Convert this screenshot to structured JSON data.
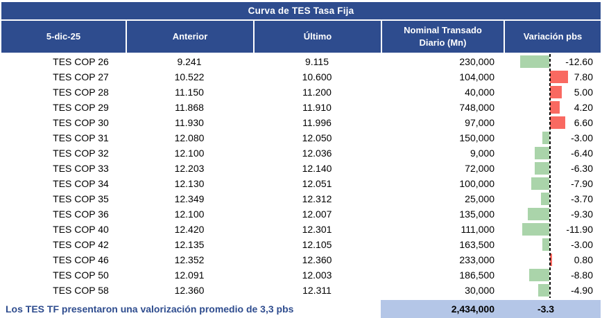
{
  "title": "Curva de TES Tasa Fija",
  "header": {
    "date": "5-dic-25",
    "anterior": "Anterior",
    "ultimo": "Último",
    "nominal_line1": "Nominal Transado",
    "nominal_line2": "Diario (Mn)",
    "variacion": "Variación pbs"
  },
  "table": {
    "rows": [
      {
        "label": "TES COP 26",
        "anterior": "9.241",
        "ultimo": "9.115",
        "nominal": "230,000",
        "variacion": -12.6,
        "variacion_display": "-12.60"
      },
      {
        "label": "TES COP 27",
        "anterior": "10.522",
        "ultimo": "10.600",
        "nominal": "104,000",
        "variacion": 7.8,
        "variacion_display": "7.80"
      },
      {
        "label": "TES COP 28",
        "anterior": "11.150",
        "ultimo": "11.200",
        "nominal": "40,000",
        "variacion": 5.0,
        "variacion_display": "5.00"
      },
      {
        "label": "TES COP 29",
        "anterior": "11.868",
        "ultimo": "11.910",
        "nominal": "748,000",
        "variacion": 4.2,
        "variacion_display": "4.20"
      },
      {
        "label": "TES COP 30",
        "anterior": "11.930",
        "ultimo": "11.996",
        "nominal": "97,000",
        "variacion": 6.6,
        "variacion_display": "6.60"
      },
      {
        "label": "TES COP 31",
        "anterior": "12.080",
        "ultimo": "12.050",
        "nominal": "150,000",
        "variacion": -3.0,
        "variacion_display": "-3.00"
      },
      {
        "label": "TES COP 32",
        "anterior": "12.100",
        "ultimo": "12.036",
        "nominal": "9,000",
        "variacion": -6.4,
        "variacion_display": "-6.40"
      },
      {
        "label": "TES COP 33",
        "anterior": "12.203",
        "ultimo": "12.140",
        "nominal": "72,000",
        "variacion": -6.3,
        "variacion_display": "-6.30"
      },
      {
        "label": "TES COP 34",
        "anterior": "12.130",
        "ultimo": "12.051",
        "nominal": "100,000",
        "variacion": -7.9,
        "variacion_display": "-7.90"
      },
      {
        "label": "TES COP 35",
        "anterior": "12.349",
        "ultimo": "12.312",
        "nominal": "25,000",
        "variacion": -3.7,
        "variacion_display": "-3.70"
      },
      {
        "label": "TES COP 36",
        "anterior": "12.100",
        "ultimo": "12.007",
        "nominal": "135,000",
        "variacion": -9.3,
        "variacion_display": "-9.30"
      },
      {
        "label": "TES COP 40",
        "anterior": "12.420",
        "ultimo": "12.301",
        "nominal": "111,000",
        "variacion": -11.9,
        "variacion_display": "-11.90"
      },
      {
        "label": "TES COP 42",
        "anterior": "12.135",
        "ultimo": "12.105",
        "nominal": "163,500",
        "variacion": -3.0,
        "variacion_display": "-3.00"
      },
      {
        "label": "TES COP 46",
        "anterior": "12.352",
        "ultimo": "12.360",
        "nominal": "233,000",
        "variacion": 0.8,
        "variacion_display": "0.80"
      },
      {
        "label": "TES COP 50",
        "anterior": "12.091",
        "ultimo": "12.003",
        "nominal": "186,500",
        "variacion": -8.8,
        "variacion_display": "-8.80"
      },
      {
        "label": "TES COP 58",
        "anterior": "12.360",
        "ultimo": "12.311",
        "nominal": "30,000",
        "variacion": -4.9,
        "variacion_display": "-4.90"
      }
    ]
  },
  "footer": {
    "note": "Los TES TF presentaron una valorización promedio de 3,3 pbs",
    "total_nominal": "2,434,000",
    "avg_variacion": "-3.3"
  },
  "colors": {
    "header_bg": "#2E4C8E",
    "header_text": "#FFFFFF",
    "positive_bar": "#F96961",
    "negative_bar": "#AAD4AA",
    "total_bg": "#B4C6E7",
    "note_text": "#2E4C8E",
    "zero_line": "#000000"
  },
  "chart_data": {
    "type": "table",
    "title": "Curva de TES Tasa Fija",
    "date": "5-dic-25",
    "columns": [
      "5-dic-25",
      "Anterior",
      "Último",
      "Nominal Transado Diario (Mn)",
      "Variación pbs"
    ],
    "rows": [
      [
        "TES COP 26",
        9.241,
        9.115,
        230000,
        -12.6
      ],
      [
        "TES COP 27",
        10.522,
        10.6,
        104000,
        7.8
      ],
      [
        "TES COP 28",
        11.15,
        11.2,
        40000,
        5.0
      ],
      [
        "TES COP 29",
        11.868,
        11.91,
        748000,
        4.2
      ],
      [
        "TES COP 30",
        11.93,
        11.996,
        97000,
        6.6
      ],
      [
        "TES COP 31",
        12.08,
        12.05,
        150000,
        -3.0
      ],
      [
        "TES COP 32",
        12.1,
        12.036,
        9000,
        -6.4
      ],
      [
        "TES COP 33",
        12.203,
        12.14,
        72000,
        -6.3
      ],
      [
        "TES COP 34",
        12.13,
        12.051,
        100000,
        -7.9
      ],
      [
        "TES COP 35",
        12.349,
        12.312,
        25000,
        -3.7
      ],
      [
        "TES COP 36",
        12.1,
        12.007,
        135000,
        -9.3
      ],
      [
        "TES COP 40",
        12.42,
        12.301,
        111000,
        -11.9
      ],
      [
        "TES COP 42",
        12.135,
        12.105,
        163500,
        -3.0
      ],
      [
        "TES COP 46",
        12.352,
        12.36,
        233000,
        0.8
      ],
      [
        "TES COP 50",
        12.091,
        12.003,
        186500,
        -8.8
      ],
      [
        "TES COP 58",
        12.36,
        12.311,
        30000,
        -4.9
      ]
    ],
    "totals": {
      "nominal_transado": 2434000,
      "variacion_promedio_pbs": -3.3
    },
    "embedded_bars": {
      "column": "Variación pbs",
      "positive_color": "#F96961",
      "negative_color": "#AAD4AA",
      "zero_axis": "dashed-black-vertical"
    },
    "note": "Los TES TF presentaron una valorización promedio de 3,3 pbs"
  }
}
